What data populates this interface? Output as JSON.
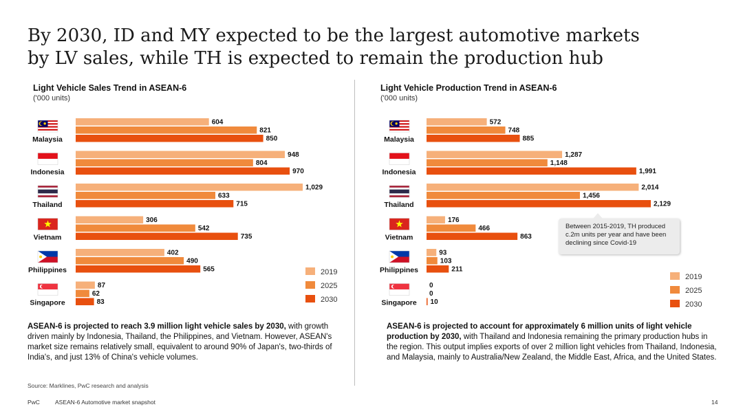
{
  "title": {
    "line1": "By 2030, ID and MY expected to be the largest automotive markets",
    "line2": "by LV sales, while TH is expected to remain the production hub"
  },
  "colors": {
    "2019": "#f6b07a",
    "2025": "#f08a3c",
    "2030": "#e8500f"
  },
  "chart_data": [
    {
      "type": "bar",
      "orientation": "horizontal",
      "title": "Light Vehicle Sales Trend in ASEAN-6",
      "unit": "('000 units)",
      "categories": [
        "Malaysia",
        "Indonesia",
        "Thailand",
        "Vietnam",
        "Philippines",
        "Singapore"
      ],
      "flag_icons": [
        "malaysia-flag-icon",
        "indonesia-flag-icon",
        "thailand-flag-icon",
        "vietnam-flag-icon",
        "philippines-flag-icon",
        "singapore-flag-icon"
      ],
      "series": [
        {
          "name": "2019",
          "values": [
            604,
            948,
            1029,
            306,
            402,
            87
          ],
          "labels": [
            "604",
            "948",
            "1,029",
            "306",
            "402",
            "87"
          ]
        },
        {
          "name": "2025",
          "values": [
            821,
            804,
            633,
            542,
            490,
            62
          ],
          "labels": [
            "821",
            "804",
            "633",
            "542",
            "490",
            "62"
          ]
        },
        {
          "name": "2030",
          "values": [
            850,
            970,
            715,
            735,
            565,
            83
          ],
          "labels": [
            "850",
            "970",
            "715",
            "735",
            "565",
            "83"
          ]
        }
      ],
      "xlim": [
        0,
        1029
      ],
      "legend": "bottom-right"
    },
    {
      "type": "bar",
      "orientation": "horizontal",
      "title": "Light Vehicle Production Trend in ASEAN-6",
      "unit": "('000 units)",
      "categories": [
        "Malaysia",
        "Indonesia",
        "Thailand",
        "Vietnam",
        "Philippines",
        "Singapore"
      ],
      "flag_icons": [
        "malaysia-flag-icon",
        "indonesia-flag-icon",
        "thailand-flag-icon",
        "vietnam-flag-icon",
        "philippines-flag-icon",
        "singapore-flag-icon"
      ],
      "series": [
        {
          "name": "2019",
          "values": [
            572,
            1287,
            2014,
            176,
            93,
            0
          ],
          "labels": [
            "572",
            "1,287",
            "2,014",
            "176",
            "93",
            "0"
          ]
        },
        {
          "name": "2025",
          "values": [
            748,
            1148,
            1456,
            466,
            103,
            0
          ],
          "labels": [
            "748",
            "1,148",
            "1,456",
            "466",
            "103",
            "0"
          ]
        },
        {
          "name": "2030",
          "values": [
            885,
            1991,
            2129,
            863,
            211,
            10
          ],
          "labels": [
            "885",
            "1,991",
            "2,129",
            "863",
            "211",
            "10"
          ]
        }
      ],
      "xlim": [
        0,
        2129
      ],
      "legend": "bottom-right",
      "annotation": "Between 2015-2019, TH produced c.2m units per year and have been declining since Covid-19"
    }
  ],
  "left_text": {
    "bold": "ASEAN-6 is projected to reach 3.9 million light vehicle sales by 2030,",
    "rest": " with growth driven mainly by Indonesia, Thailand, the Philippines, and Vietnam. However, ASEAN's market size remains relatively small, equivalent to around 90% of Japan's, two-thirds of India's, and just 13% of China's vehicle volumes."
  },
  "right_text": {
    "bold": "ASEAN-6 is projected to account for approximately 6 million units of light vehicle production by 2030,",
    "rest": " with Thailand and Indonesia remaining the primary production hubs in the region. This output implies exports of over 2 million light vehicles from Thailand, Indonesia, and Malaysia, mainly to Australia/New Zealand, the Middle East, Africa, and the United States."
  },
  "source": "Source: Marklines, PwC research and analysis",
  "footer": {
    "brand": "PwC",
    "doc": "ASEAN-6 Automotive market snapshot",
    "page": "14"
  }
}
